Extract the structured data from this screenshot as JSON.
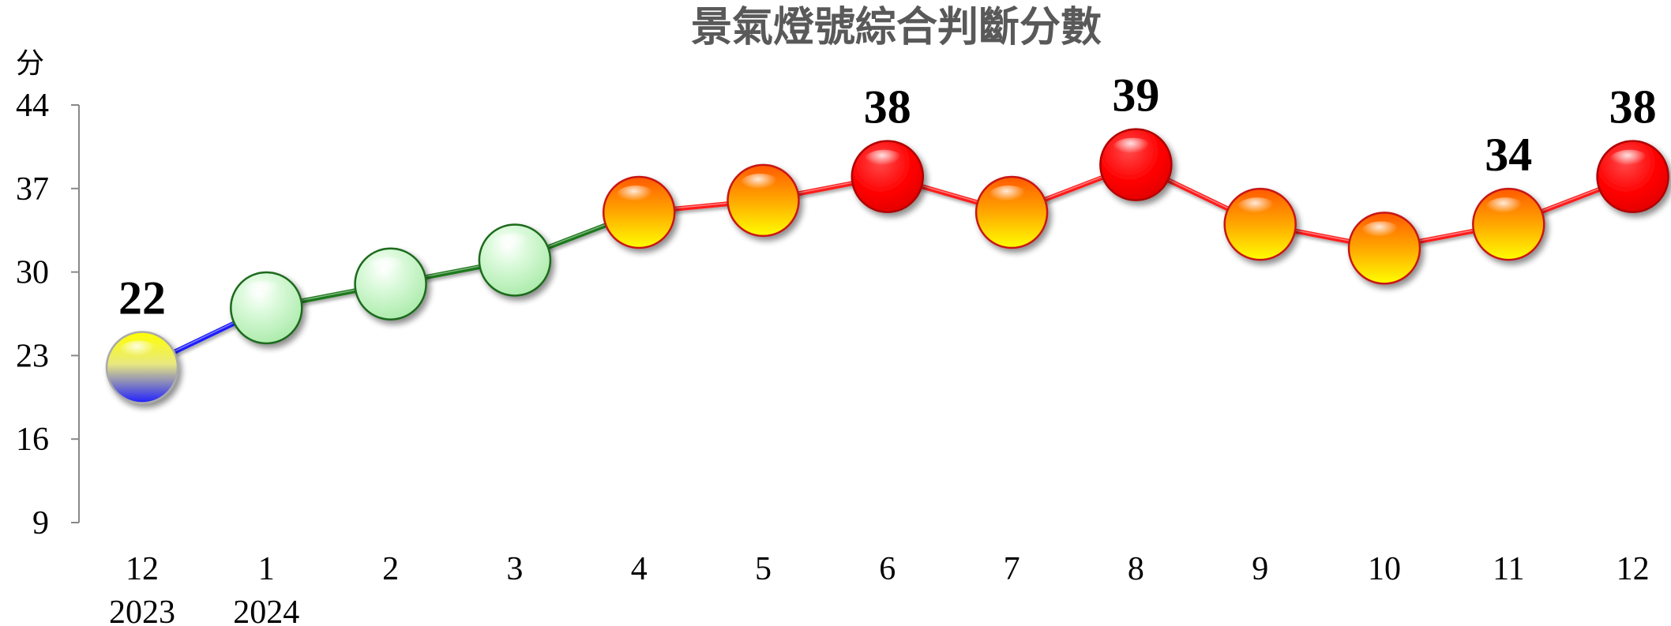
{
  "chart_data": {
    "type": "line",
    "title": "景氣燈號綜合判斷分數",
    "ylabel": "分",
    "ylim": [
      9,
      44
    ],
    "yticks": [
      "9",
      "16",
      "23",
      "30",
      "37",
      "44"
    ],
    "categories": [
      {
        "month": "12",
        "year": "2023"
      },
      {
        "month": "1",
        "year": "2024"
      },
      {
        "month": "2",
        "year": ""
      },
      {
        "month": "3",
        "year": ""
      },
      {
        "month": "4",
        "year": ""
      },
      {
        "month": "5",
        "year": ""
      },
      {
        "month": "6",
        "year": ""
      },
      {
        "month": "7",
        "year": ""
      },
      {
        "month": "8",
        "year": ""
      },
      {
        "month": "9",
        "year": ""
      },
      {
        "month": "10",
        "year": ""
      },
      {
        "month": "11",
        "year": ""
      },
      {
        "month": "12",
        "year": ""
      }
    ],
    "values": [
      22,
      27,
      29,
      31,
      35,
      36,
      38,
      35,
      39,
      34,
      32,
      34,
      38
    ],
    "signals": [
      "yellow-blue",
      "green",
      "green",
      "green",
      "yellow-red",
      "yellow-red",
      "red",
      "yellow-red",
      "red",
      "yellow-red",
      "yellow-red",
      "yellow-red",
      "red"
    ],
    "data_labels": [
      "22",
      "",
      "",
      "",
      "",
      "",
      "38",
      "",
      "39",
      "",
      "",
      "34",
      "38"
    ],
    "signal_colors": {
      "blue": "#1f2cff",
      "yellow": "#ffff00",
      "green": "#c8f5c8",
      "orange": "#ff6a00",
      "red": "#ff0000"
    },
    "grid": false
  }
}
